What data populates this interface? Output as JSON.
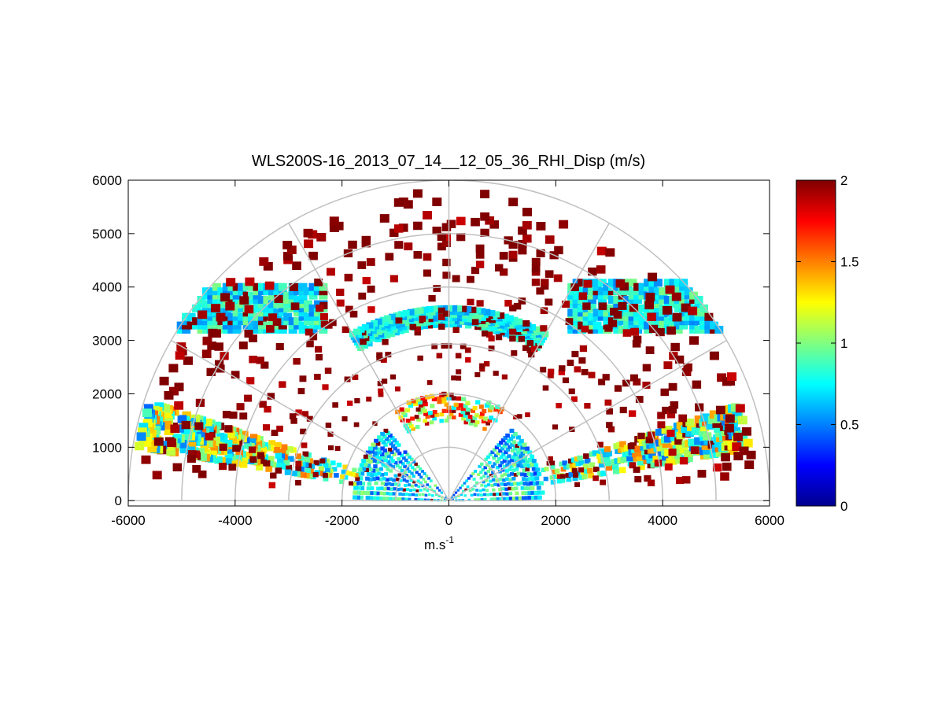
{
  "chart_data": {
    "type": "heatmap",
    "subtype": "polar-rhi-scan",
    "title": "WLS200S-16_2013_07_14__12_05_36_RHI_Disp (m/s)",
    "xlabel_base": "m.s",
    "xlabel_sup": "-1",
    "ylabel": "",
    "xlim": [
      -6000,
      6000
    ],
    "ylim": [
      -100,
      6000
    ],
    "xticks": [
      "-6000",
      "-4000",
      "-2000",
      "0",
      "2000",
      "4000",
      "6000"
    ],
    "yticks": [
      "0",
      "1000",
      "2000",
      "3000",
      "4000",
      "5000",
      "6000"
    ],
    "grid": true,
    "polar_grid": {
      "ring_ranges_m": [
        1000,
        2000,
        3000,
        4000,
        5000,
        6000
      ],
      "spoke_angles_deg": [
        0,
        30,
        60,
        90,
        120,
        150,
        180
      ]
    },
    "colorbar": {
      "colormap": "jet",
      "min": 0,
      "max": 2,
      "ticks": [
        "0",
        "0.5",
        "1",
        "1.5",
        "2"
      ],
      "placement": "right"
    },
    "series": [
      {
        "name": "",
        "description": "near-field dense returns",
        "range_m": [
          0,
          1800
        ],
        "elev_deg": [
          2,
          48
        ],
        "mean": 0.7,
        "spread": 0.35,
        "density": 0.9
      },
      {
        "name": "",
        "description": "near-field dense returns",
        "range_m": [
          0,
          1800
        ],
        "elev_deg": [
          132,
          178
        ],
        "mean": 0.7,
        "spread": 0.35,
        "density": 0.9
      },
      {
        "name": "",
        "description": "upper near arc",
        "range_m": [
          1500,
          2000
        ],
        "elev_deg": [
          60,
          120
        ],
        "mean": 1.3,
        "spread": 0.6,
        "density": 0.6
      },
      {
        "name": "",
        "description": "cloud layer",
        "range_m": [
          3300,
          3650
        ],
        "elev_deg": [
          60,
          120
        ],
        "mean": 0.75,
        "spread": 0.2,
        "density": 0.95
      },
      {
        "name": "",
        "description": "cloud layer",
        "height_m": [
          3200,
          4000
        ],
        "x_m": [
          -5200,
          -2300
        ],
        "mean": 0.75,
        "spread": 0.25,
        "density": 0.8
      },
      {
        "name": "",
        "description": "cloud layer",
        "height_m": [
          3200,
          4100
        ],
        "x_m": [
          2300,
          5200
        ],
        "mean": 0.75,
        "spread": 0.25,
        "density": 0.8
      },
      {
        "name": "",
        "description": "low-elevation aerosol band",
        "range_m": [
          1800,
          5700
        ],
        "elev_deg": [
          10,
          18
        ],
        "mean": 1.0,
        "spread": 0.55,
        "density": 0.55
      },
      {
        "name": "",
        "description": "low-elevation aerosol band",
        "range_m": [
          1800,
          5900
        ],
        "elev_deg": [
          162,
          170
        ],
        "mean": 1.0,
        "spread": 0.55,
        "density": 0.55
      },
      {
        "name": "",
        "description": "high-dispersion noise",
        "range_m": [
          2000,
          5800
        ],
        "elev_deg": [
          5,
          175
        ],
        "mean": 2.0,
        "spread": 0.15,
        "density": 0.05
      }
    ]
  }
}
